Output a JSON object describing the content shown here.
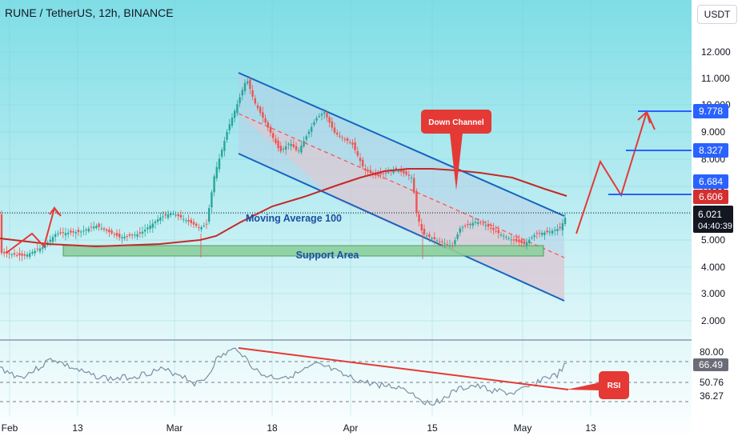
{
  "header": {
    "title": "RUNE / TetherUS, 12h, BINANCE",
    "currency": "USDT"
  },
  "colors": {
    "background_top": "#7fdde6",
    "background_bottom": "#ffffff",
    "candle_up": "#26a69a",
    "candle_down": "#ef5350",
    "moving_average": "#c62828",
    "channel_line": "#1565c0",
    "support_fill": "#8ecf9e",
    "callout_red": "#e53935",
    "rsi_line": "#7b8fa3",
    "price_label_blue": "#2962ff",
    "price_label_red": "#d32f2f",
    "current_price_bg": "#131722"
  },
  "main_chart": {
    "price_axis_ticks": [
      "12.000",
      "11.000",
      "10.000",
      "9.000",
      "8.000",
      "7.000",
      "6.000",
      "5.000",
      "4.000",
      "3.000",
      "2.000"
    ],
    "price_labels": [
      {
        "value": "9.778",
        "style": "blue"
      },
      {
        "value": "8.327",
        "style": "blue"
      },
      {
        "value": "6.684",
        "style": "blue"
      },
      {
        "value": "6.606",
        "style": "red"
      }
    ],
    "current_price": "6.021",
    "countdown": "04:40:39",
    "annotations": {
      "moving_average": "Moving Average 100",
      "support": "Support Area",
      "channel": "Down Channel"
    }
  },
  "rsi_panel": {
    "axis_ticks": [
      "80.00",
      "50.76",
      "36.27"
    ],
    "current_value": "66.49",
    "annotation": "RSI"
  },
  "time_axis": [
    "Feb",
    "13",
    "Mar",
    "18",
    "Apr",
    "15",
    "May",
    "13"
  ]
}
